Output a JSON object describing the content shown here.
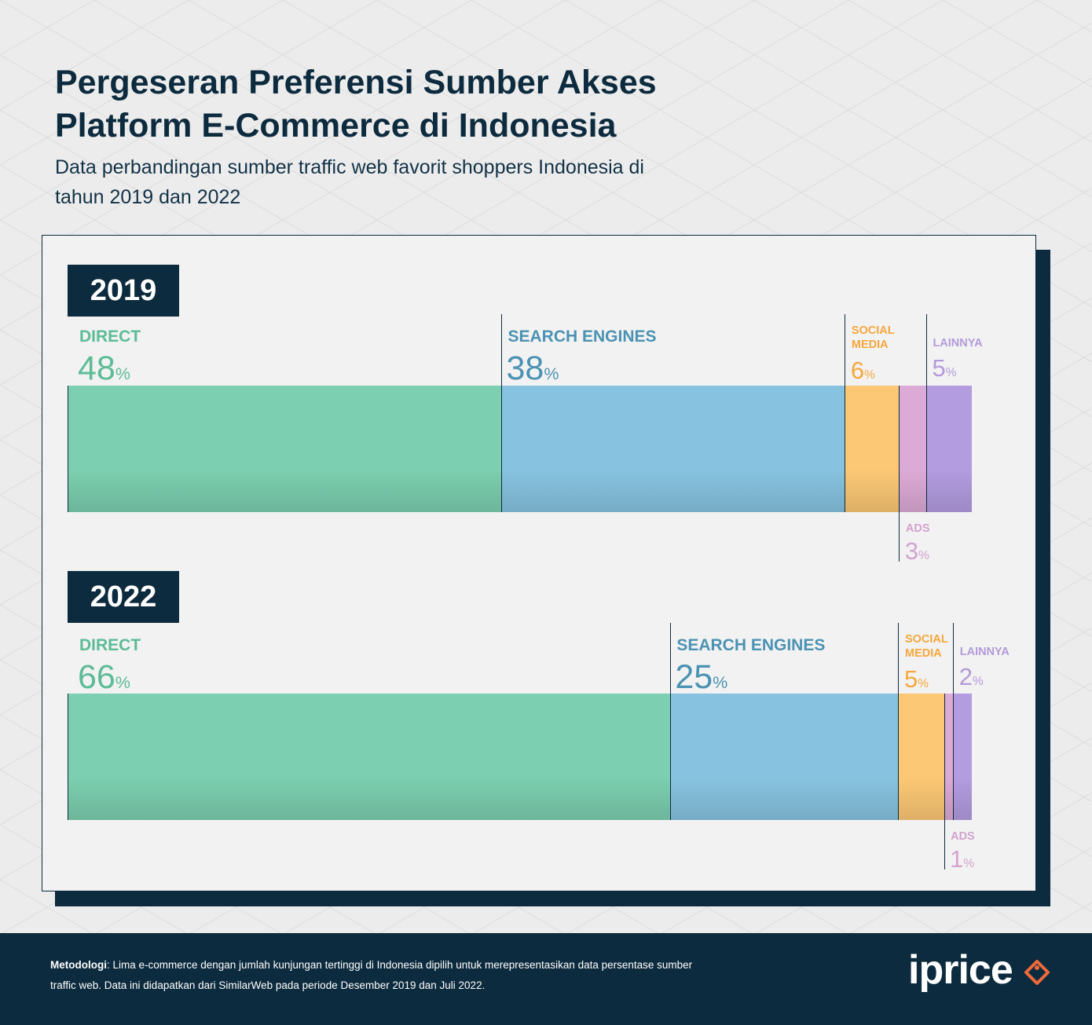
{
  "header": {
    "title": "Pergeseran Preferensi Sumber Akses Platform E-Commerce di Indonesia",
    "subtitle": "Data perbandingan sumber traffic web favorit shoppers Indonesia di tahun 2019 dan 2022"
  },
  "chart_data": [
    {
      "type": "bar",
      "orientation": "horizontal-stacked",
      "year": "2019",
      "unit": "%",
      "categories": [
        "DIRECT",
        "SEARCH ENGINES",
        "SOCIAL MEDIA",
        "ADS",
        "LAINNYA"
      ],
      "values": [
        48,
        38,
        6,
        3,
        5
      ]
    },
    {
      "type": "bar",
      "orientation": "horizontal-stacked",
      "year": "2022",
      "unit": "%",
      "categories": [
        "DIRECT",
        "SEARCH ENGINES",
        "SOCIAL MEDIA",
        "ADS",
        "LAINNYA"
      ],
      "values": [
        66,
        25,
        5,
        1,
        2
      ]
    }
  ],
  "colors": {
    "DIRECT": {
      "fill": "#7ccfb0",
      "text": "#5cbc96"
    },
    "SEARCH ENGINES": {
      "fill": "#87c3e0",
      "text": "#4b92b3"
    },
    "SOCIAL MEDIA": {
      "fill": "#fcc875",
      "text": "#f5a73b"
    },
    "ADS": {
      "fill": "#dcaad6",
      "text": "#d3a3cf"
    },
    "LAINNYA": {
      "fill": "#b39ce0",
      "text": "#b49ad9"
    },
    "navy": "#0d2b3e"
  },
  "footer": {
    "method_label": "Metodologi",
    "method_text": ": Lima e-commerce dengan jumlah kunjungan tertinggi di Indonesia dipilih untuk merepresentasikan data persentase sumber traffic web. Data ini didapatkan dari SimilarWeb pada periode Desember 2019 dan Juli 2022.",
    "logo_text": "iprice"
  }
}
